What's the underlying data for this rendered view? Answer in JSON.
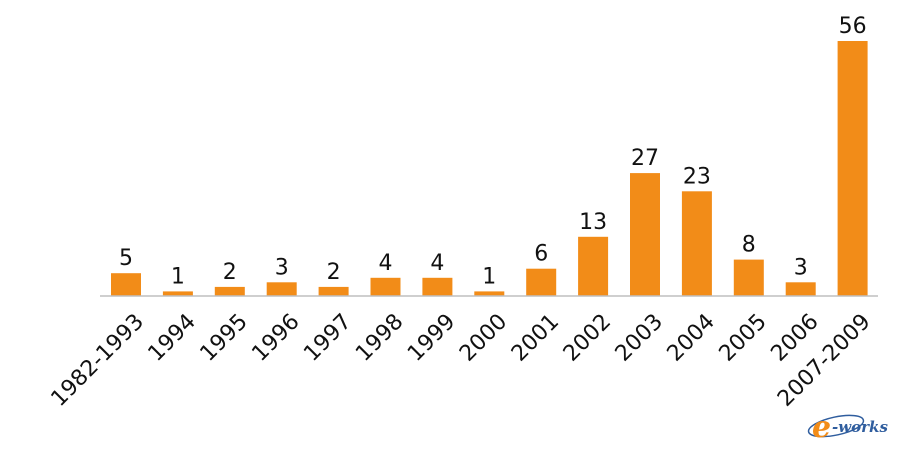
{
  "chart_data": {
    "type": "bar",
    "categories": [
      "1982-1993",
      "1994",
      "1995",
      "1996",
      "1997",
      "1998",
      "1999",
      "2000",
      "2001",
      "2002",
      "2003",
      "2004",
      "2005",
      "2006",
      "2007-2009"
    ],
    "values": [
      5,
      1,
      2,
      3,
      2,
      4,
      4,
      1,
      6,
      13,
      27,
      23,
      8,
      3,
      56
    ],
    "title": "",
    "xlabel": "",
    "ylabel": "",
    "ylim": [
      0,
      56
    ],
    "grid": false,
    "legend": "none",
    "bar_color": "#f28c18",
    "axis_color": "#bfbfbf"
  },
  "watermark": {
    "text": "e-works",
    "icon": "e-works-logo",
    "colors": [
      "#f28c18",
      "#2f5d9e"
    ]
  }
}
